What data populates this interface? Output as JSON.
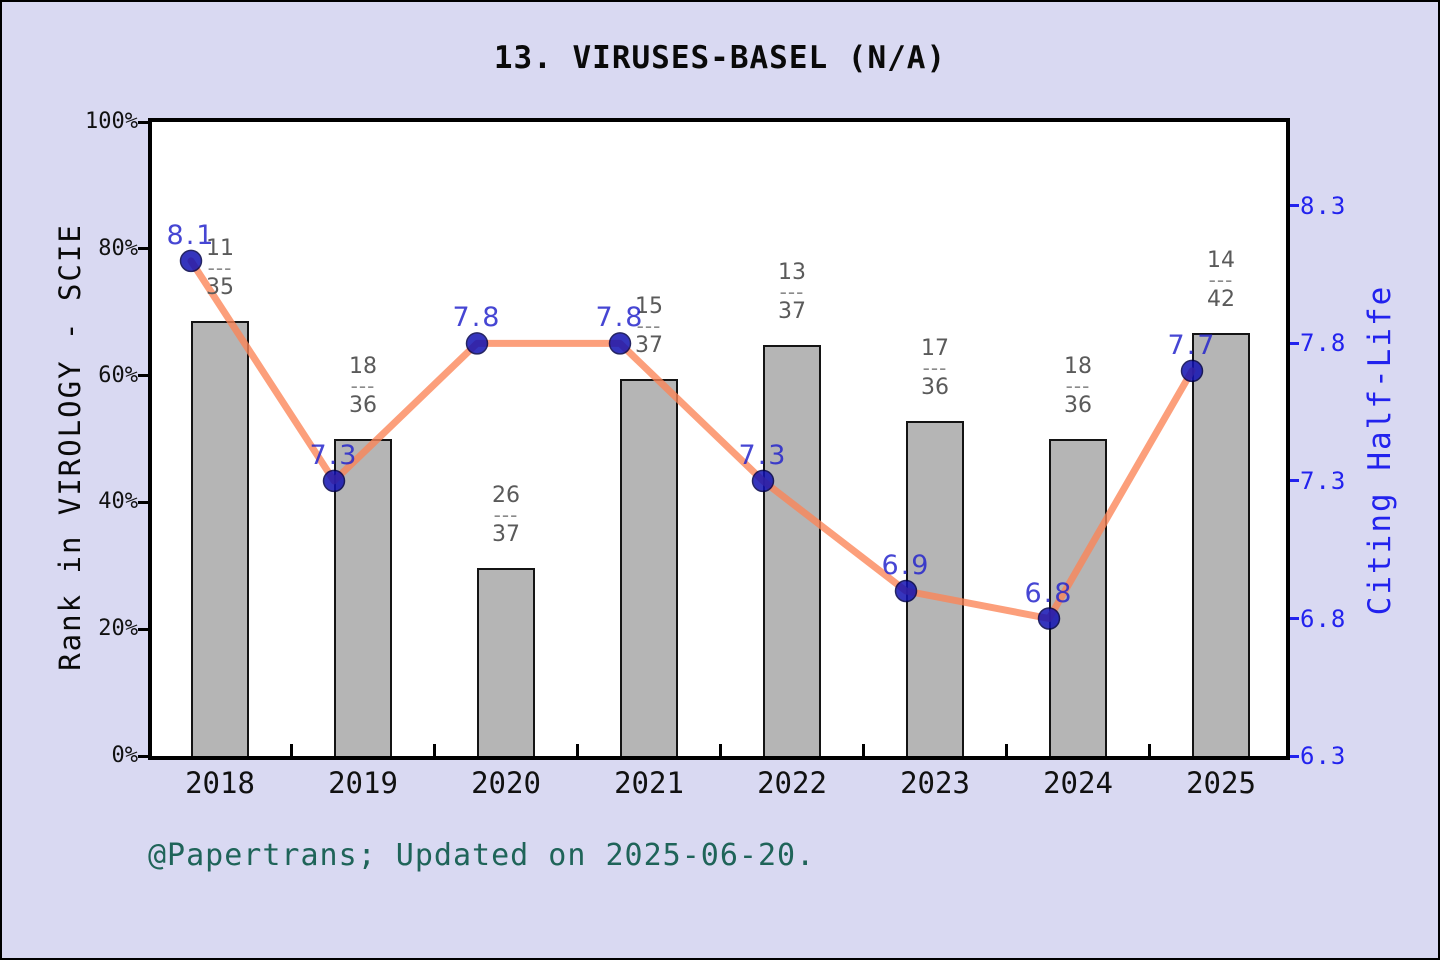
{
  "title": "13. VIRUSES-BASEL (N/A)",
  "footer": "@Papertrans; Updated on 2025-06-20.",
  "colors": {
    "background": "#d9d9f2",
    "plot_bg": "#ffffff",
    "bar_fill": "#b5b5b5",
    "line": "#fb8456",
    "marker": "#1212b2",
    "value_label": "#2626cc",
    "right_axis": "#2222ee",
    "fraction": "#5a5a5a",
    "footer": "#1f6459"
  },
  "chart_data": {
    "type": "bar+line",
    "title": "13. VIRUSES-BASEL (N/A)",
    "categories": [
      "2018",
      "2019",
      "2020",
      "2021",
      "2022",
      "2023",
      "2024",
      "2025"
    ],
    "series": [
      {
        "name": "Rank in VIROLOGY - SCIE",
        "type": "bar",
        "axis": "left",
        "rank_fractions": [
          "11/35",
          "18/36",
          "26/37",
          "15/37",
          "13/37",
          "17/36",
          "18/36",
          "14/42"
        ],
        "rank": [
          [
            11,
            35
          ],
          [
            18,
            36
          ],
          [
            26,
            37
          ],
          [
            15,
            37
          ],
          [
            13,
            37
          ],
          [
            17,
            36
          ],
          [
            18,
            36
          ],
          [
            14,
            42
          ]
        ],
        "percent_values": [
          68.6,
          50.0,
          29.7,
          59.5,
          64.9,
          52.8,
          50.0,
          66.7
        ]
      },
      {
        "name": "Citing Half-Life",
        "type": "line",
        "axis": "right",
        "values": [
          8.1,
          7.3,
          7.8,
          7.8,
          7.3,
          6.9,
          6.8,
          7.7
        ]
      }
    ],
    "left_axis": {
      "label": "Rank in VIROLOGY - SCIE",
      "ticks": [
        "0%",
        "20%",
        "40%",
        "60%",
        "80%",
        "100%"
      ],
      "range": [
        0,
        100
      ]
    },
    "right_axis": {
      "label": "Citing Half-Life",
      "ticks": [
        6.3,
        6.8,
        7.3,
        7.8,
        8.3
      ],
      "range": [
        6.3,
        8.605
      ]
    },
    "grid": false,
    "legend": false
  }
}
